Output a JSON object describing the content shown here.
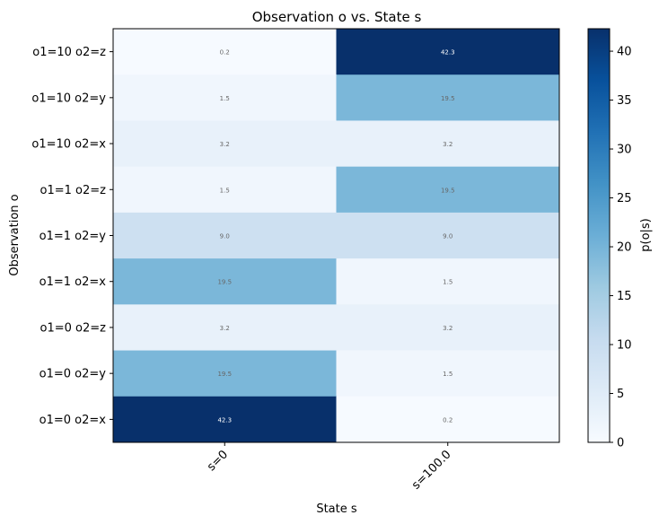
{
  "chart_data": {
    "type": "heatmap",
    "title": "Observation o vs. State s",
    "xlabel": "State s",
    "ylabel": "Observation o",
    "x_categories": [
      "s=0",
      "s=100.0"
    ],
    "y_categories_top_to_bottom": [
      "o1=10 o2=z",
      "o1=10 o2=y",
      "o1=10 o2=x",
      "o1=1 o2=z",
      "o1=1 o2=y",
      "o1=1 o2=x",
      "o1=0 o2=z",
      "o1=0 o2=y",
      "o1=0 o2=x"
    ],
    "values_top_to_bottom": [
      [
        0.2,
        42.3
      ],
      [
        1.5,
        19.5
      ],
      [
        3.2,
        3.2
      ],
      [
        1.5,
        19.5
      ],
      [
        9.0,
        9.0
      ],
      [
        19.5,
        1.5
      ],
      [
        3.2,
        3.2
      ],
      [
        19.5,
        1.5
      ],
      [
        42.3,
        0.2
      ]
    ],
    "cell_labels_top_to_bottom": [
      [
        "0.2",
        "42.3"
      ],
      [
        "1.5",
        "19.5"
      ],
      [
        "3.2",
        "3.2"
      ],
      [
        "1.5",
        "19.5"
      ],
      [
        "9.0",
        "9.0"
      ],
      [
        "19.5",
        "1.5"
      ],
      [
        "3.2",
        "3.2"
      ],
      [
        "19.5",
        "1.5"
      ],
      [
        "42.3",
        "0.2"
      ]
    ],
    "colorbar": {
      "label": "p(o|s)",
      "range": [
        0,
        42.3
      ],
      "ticks": [
        "0",
        "5",
        "10",
        "15",
        "20",
        "25",
        "30",
        "35",
        "40"
      ],
      "colormap": "Blues"
    }
  }
}
